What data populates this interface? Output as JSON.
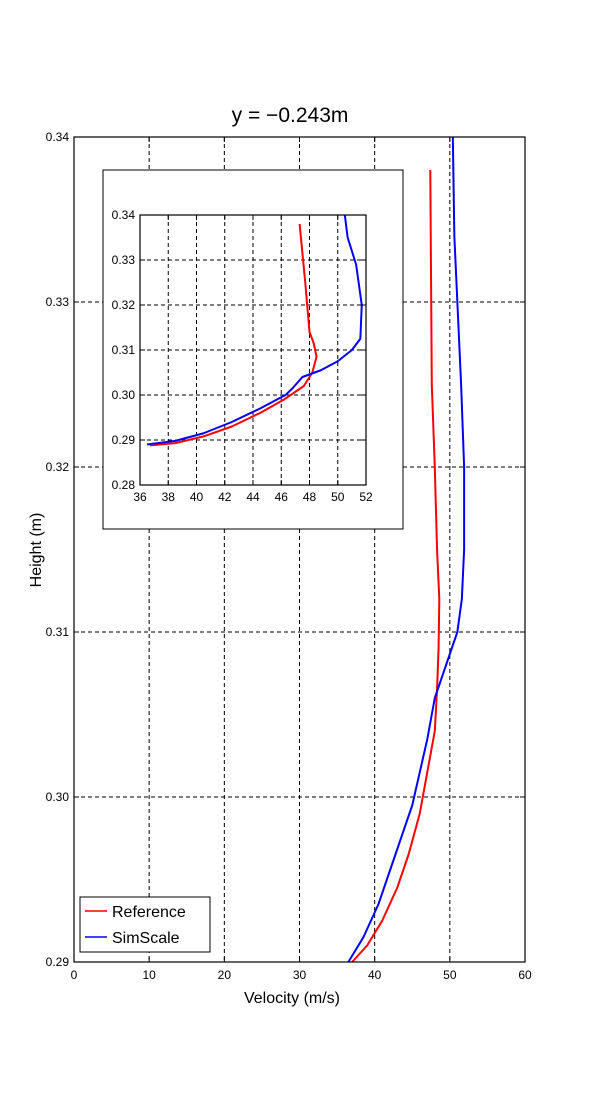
{
  "chart_data": [
    {
      "type": "line",
      "title": "y = −0.243m",
      "xlabel": "Velocity (m/s)",
      "ylabel": "Height (m)",
      "xlim": [
        0,
        60
      ],
      "ylim": [
        0.29,
        0.34
      ],
      "x_ticks": [
        "0",
        "10",
        "20",
        "30",
        "40",
        "50",
        "60"
      ],
      "y_ticks": [
        "0.29",
        "0.30",
        "0.31",
        "0.32",
        "0.33",
        "0.34"
      ],
      "grid": true,
      "legend_position": "bottom-left",
      "series": [
        {
          "name": "Reference",
          "color": "#ff0000",
          "points": [
            [
              37.0,
              0.29
            ],
            [
              39.0,
              0.291
            ],
            [
              41.0,
              0.2925
            ],
            [
              43.0,
              0.2945
            ],
            [
              44.5,
              0.2965
            ],
            [
              46.0,
              0.299
            ],
            [
              47.0,
              0.3015
            ],
            [
              48.0,
              0.304
            ],
            [
              48.3,
              0.3065
            ],
            [
              48.5,
              0.309
            ],
            [
              48.6,
              0.312
            ],
            [
              48.3,
              0.315
            ],
            [
              48.0,
              0.32
            ],
            [
              47.6,
              0.325
            ],
            [
              47.4,
              0.338
            ]
          ]
        },
        {
          "name": "SimScale",
          "color": "#0000ff",
          "points": [
            [
              36.5,
              0.29
            ],
            [
              38.5,
              0.2915
            ],
            [
              40.5,
              0.2935
            ],
            [
              42.0,
              0.2955
            ],
            [
              43.5,
              0.2975
            ],
            [
              45.0,
              0.2995
            ],
            [
              46.0,
              0.3015
            ],
            [
              47.0,
              0.3035
            ],
            [
              48.0,
              0.306
            ],
            [
              49.5,
              0.308
            ],
            [
              51.0,
              0.31
            ],
            [
              51.6,
              0.312
            ],
            [
              51.9,
              0.315
            ],
            [
              51.9,
              0.32
            ],
            [
              51.5,
              0.325
            ],
            [
              51.0,
              0.33
            ],
            [
              50.6,
              0.334
            ],
            [
              50.4,
              0.34
            ]
          ]
        }
      ]
    },
    {
      "type": "line",
      "title": "",
      "xlabel": "",
      "ylabel": "",
      "xlim": [
        36,
        52
      ],
      "ylim": [
        0.28,
        0.34
      ],
      "x_ticks": [
        "36",
        "38",
        "40",
        "42",
        "44",
        "46",
        "48",
        "50",
        "52"
      ],
      "y_ticks": [
        "0.28",
        "0.29",
        "0.30",
        "0.31",
        "0.32",
        "0.33",
        "0.34"
      ],
      "grid": true,
      "series": [
        {
          "name": "Reference",
          "color": "#ff0000",
          "points": [
            [
              36.7,
              0.2888
            ],
            [
              38.5,
              0.2893
            ],
            [
              40.5,
              0.2908
            ],
            [
              42.5,
              0.293
            ],
            [
              44.5,
              0.296
            ],
            [
              46.2,
              0.299
            ],
            [
              47.6,
              0.302
            ],
            [
              48.2,
              0.305
            ],
            [
              48.5,
              0.3085
            ],
            [
              48.3,
              0.3115
            ],
            [
              48.0,
              0.314
            ],
            [
              47.7,
              0.325
            ],
            [
              47.3,
              0.338
            ]
          ]
        },
        {
          "name": "SimScale",
          "color": "#0000ff",
          "points": [
            [
              36.5,
              0.289
            ],
            [
              38.5,
              0.2898
            ],
            [
              40.5,
              0.2915
            ],
            [
              42.5,
              0.294
            ],
            [
              44.5,
              0.297
            ],
            [
              46.3,
              0.3
            ],
            [
              46.8,
              0.3015
            ],
            [
              47.5,
              0.304
            ],
            [
              48.8,
              0.3055
            ],
            [
              50.0,
              0.3075
            ],
            [
              51.0,
              0.31
            ],
            [
              51.6,
              0.3125
            ],
            [
              51.7,
              0.32
            ],
            [
              51.3,
              0.329
            ],
            [
              50.7,
              0.335
            ],
            [
              50.5,
              0.34
            ]
          ]
        }
      ]
    }
  ]
}
